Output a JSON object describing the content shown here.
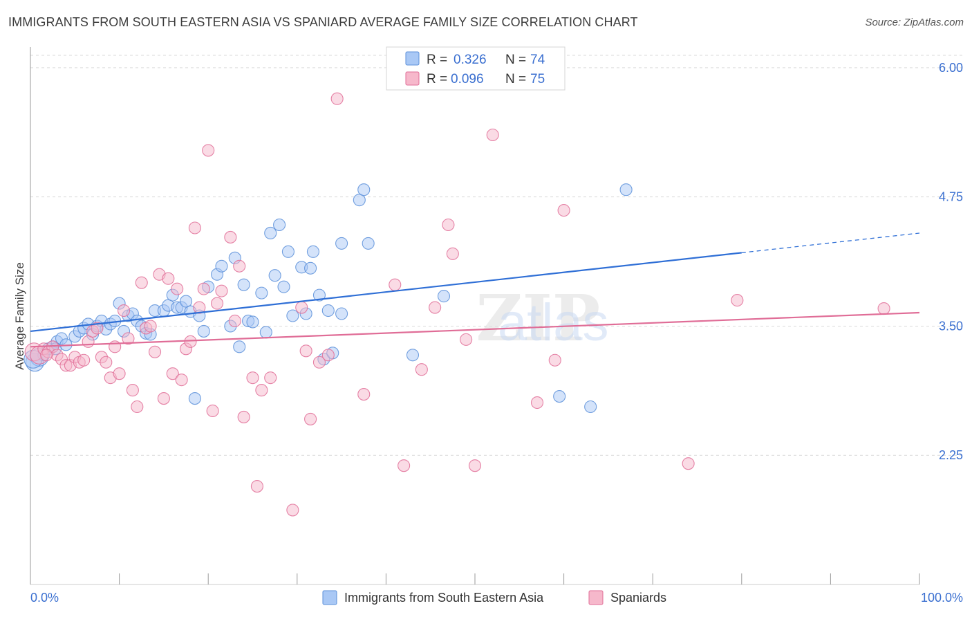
{
  "header": {
    "title": "IMMIGRANTS FROM SOUTH EASTERN ASIA VS SPANIARD AVERAGE FAMILY SIZE CORRELATION CHART",
    "source": "Source: ZipAtlas.com"
  },
  "legend": {
    "r_label": "R =",
    "n_label": "N =",
    "rows": [
      {
        "r": "0.326",
        "n": "74",
        "color": "#a9c8f5"
      },
      {
        "r": "0.096",
        "n": "75",
        "color": "#f6b8cb"
      }
    ]
  },
  "watermark": {
    "part1": "ZIP",
    "part2": "atlas"
  },
  "chart_data": {
    "type": "scatter",
    "ylabel": "Average Family Size",
    "xlabel": "",
    "xlim": [
      0,
      100
    ],
    "ylim": [
      1.0,
      6.2
    ],
    "x_tick_labels": [
      "0.0%",
      "100.0%"
    ],
    "y_ticks": [
      2.25,
      3.5,
      4.75,
      6.0
    ],
    "y_tick_labels": [
      "2.25",
      "3.50",
      "4.75",
      "6.00"
    ],
    "grid": true,
    "series": [
      {
        "name": "Immigrants from South Eastern Asia",
        "color": "#5b8fd9",
        "fill": "#a9c8f5",
        "trend": {
          "x0": 0,
          "y0": 3.45,
          "x1": 80,
          "y1": 4.21,
          "dash_to_x": 100,
          "dash_to_y": 4.4
        },
        "points": [
          [
            0.5,
            3.15
          ],
          [
            1.0,
            3.2
          ],
          [
            1.5,
            3.22
          ],
          [
            2.0,
            3.28
          ],
          [
            2.5,
            3.3
          ],
          [
            3.0,
            3.35
          ],
          [
            3.5,
            3.38
          ],
          [
            4.0,
            3.32
          ],
          [
            5.0,
            3.4
          ],
          [
            5.5,
            3.45
          ],
          [
            6.0,
            3.48
          ],
          [
            6.5,
            3.52
          ],
          [
            7.0,
            3.42
          ],
          [
            7.5,
            3.5
          ],
          [
            8.0,
            3.55
          ],
          [
            8.5,
            3.47
          ],
          [
            9.0,
            3.52
          ],
          [
            10.0,
            3.72
          ],
          [
            10.5,
            3.45
          ],
          [
            11.0,
            3.6
          ],
          [
            11.5,
            3.62
          ],
          [
            12.0,
            3.55
          ],
          [
            12.5,
            3.5
          ],
          [
            13.0,
            3.43
          ],
          [
            13.5,
            3.42
          ],
          [
            14.0,
            3.65
          ],
          [
            15.0,
            3.65
          ],
          [
            15.5,
            3.7
          ],
          [
            16.0,
            3.8
          ],
          [
            16.5,
            3.68
          ],
          [
            17.0,
            3.68
          ],
          [
            17.5,
            3.74
          ],
          [
            18.0,
            3.64
          ],
          [
            18.5,
            2.8
          ],
          [
            19.0,
            3.6
          ],
          [
            19.5,
            3.45
          ],
          [
            20.0,
            3.88
          ],
          [
            21.0,
            4.0
          ],
          [
            21.5,
            4.08
          ],
          [
            22.5,
            3.5
          ],
          [
            23.0,
            4.16
          ],
          [
            23.5,
            3.3
          ],
          [
            24.0,
            3.9
          ],
          [
            24.5,
            3.55
          ],
          [
            25.0,
            3.54
          ],
          [
            26.0,
            3.82
          ],
          [
            26.5,
            3.44
          ],
          [
            27.0,
            4.4
          ],
          [
            27.5,
            3.99
          ],
          [
            28.0,
            4.48
          ],
          [
            28.5,
            3.88
          ],
          [
            29.0,
            4.22
          ],
          [
            29.5,
            3.6
          ],
          [
            30.5,
            4.07
          ],
          [
            31.0,
            3.62
          ],
          [
            31.5,
            4.06
          ],
          [
            31.8,
            4.22
          ],
          [
            32.5,
            3.8
          ],
          [
            33.0,
            3.18
          ],
          [
            33.5,
            3.65
          ],
          [
            34.0,
            3.24
          ],
          [
            35.0,
            3.62
          ],
          [
            35.0,
            4.3
          ],
          [
            37.0,
            4.72
          ],
          [
            37.5,
            4.82
          ],
          [
            43.0,
            3.22
          ],
          [
            46.5,
            3.79
          ],
          [
            59.5,
            2.82
          ],
          [
            63.0,
            2.72
          ],
          [
            67.0,
            4.82
          ],
          [
            0.3,
            3.18
          ],
          [
            2.8,
            3.28
          ],
          [
            9.5,
            3.55
          ],
          [
            38.0,
            4.3
          ]
        ]
      },
      {
        "name": "Spaniards",
        "color": "#e06d97",
        "fill": "#f6b8cb",
        "trend": {
          "x0": 0,
          "y0": 3.3,
          "x1": 100,
          "y1": 3.63
        },
        "points": [
          [
            0.4,
            3.25
          ],
          [
            1.0,
            3.22
          ],
          [
            1.5,
            3.28
          ],
          [
            2.0,
            3.25
          ],
          [
            2.5,
            3.3
          ],
          [
            3.0,
            3.22
          ],
          [
            3.5,
            3.18
          ],
          [
            4.0,
            3.12
          ],
          [
            4.5,
            3.12
          ],
          [
            5.0,
            3.2
          ],
          [
            5.5,
            3.15
          ],
          [
            6.0,
            3.17
          ],
          [
            6.5,
            3.35
          ],
          [
            7.0,
            3.45
          ],
          [
            7.5,
            3.48
          ],
          [
            8.0,
            3.2
          ],
          [
            8.5,
            3.15
          ],
          [
            9.0,
            3.0
          ],
          [
            9.5,
            3.3
          ],
          [
            10.0,
            3.04
          ],
          [
            10.5,
            3.65
          ],
          [
            11.0,
            3.38
          ],
          [
            11.5,
            2.88
          ],
          [
            12.0,
            2.72
          ],
          [
            12.5,
            3.92
          ],
          [
            13.0,
            3.48
          ],
          [
            13.5,
            3.5
          ],
          [
            14.0,
            3.25
          ],
          [
            14.5,
            4.0
          ],
          [
            15.0,
            2.8
          ],
          [
            15.5,
            3.96
          ],
          [
            16.0,
            3.04
          ],
          [
            16.5,
            3.86
          ],
          [
            17.0,
            2.98
          ],
          [
            17.5,
            3.28
          ],
          [
            18.0,
            3.35
          ],
          [
            18.5,
            4.45
          ],
          [
            19.0,
            3.68
          ],
          [
            19.5,
            3.86
          ],
          [
            20.0,
            5.2
          ],
          [
            20.5,
            2.68
          ],
          [
            21.0,
            3.72
          ],
          [
            21.5,
            3.84
          ],
          [
            22.5,
            4.36
          ],
          [
            23.0,
            3.55
          ],
          [
            23.5,
            4.08
          ],
          [
            24.0,
            2.62
          ],
          [
            25.0,
            3.0
          ],
          [
            25.5,
            1.95
          ],
          [
            26.0,
            2.88
          ],
          [
            27.0,
            3.0
          ],
          [
            29.5,
            1.72
          ],
          [
            30.5,
            3.68
          ],
          [
            31.0,
            3.26
          ],
          [
            31.5,
            2.6
          ],
          [
            32.5,
            3.15
          ],
          [
            33.5,
            3.22
          ],
          [
            34.5,
            5.7
          ],
          [
            37.5,
            2.84
          ],
          [
            41.0,
            3.9
          ],
          [
            42.0,
            2.15
          ],
          [
            44.0,
            3.08
          ],
          [
            45.5,
            3.68
          ],
          [
            47.0,
            4.48
          ],
          [
            47.5,
            4.2
          ],
          [
            49.0,
            3.37
          ],
          [
            50.0,
            2.15
          ],
          [
            52.0,
            5.35
          ],
          [
            57.0,
            2.76
          ],
          [
            59.0,
            3.17
          ],
          [
            60.0,
            4.62
          ],
          [
            74.0,
            2.17
          ],
          [
            79.5,
            3.75
          ],
          [
            96.0,
            3.67
          ],
          [
            1.8,
            3.22
          ]
        ]
      }
    ]
  }
}
